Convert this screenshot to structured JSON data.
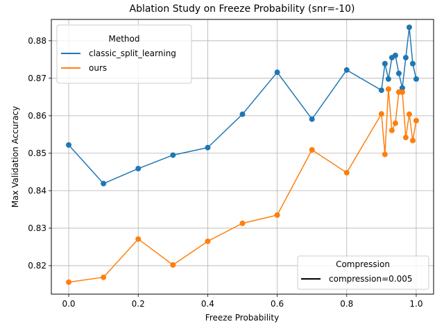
{
  "chart_data": {
    "type": "line",
    "title": "Ablation Study on Freeze Probability (snr=-10)",
    "xlabel": "Freeze Probability",
    "ylabel": "Max Validation Accuracy",
    "xlim": [
      -0.05,
      1.05
    ],
    "ylim": [
      0.8124,
      0.8857
    ],
    "x_ticks": [
      0.0,
      0.2,
      0.4,
      0.6,
      0.8,
      1.0
    ],
    "x_tick_labels": [
      "0.0",
      "0.2",
      "0.4",
      "0.6",
      "0.8",
      "1.0"
    ],
    "y_ticks": [
      0.82,
      0.83,
      0.84,
      0.85,
      0.86,
      0.87,
      0.88
    ],
    "y_tick_labels": [
      "0.82",
      "0.83",
      "0.84",
      "0.85",
      "0.86",
      "0.87",
      "0.88"
    ],
    "grid": true,
    "x": [
      0.0,
      0.1,
      0.2,
      0.3,
      0.4,
      0.5,
      0.6,
      0.7,
      0.8,
      0.9,
      0.91,
      0.92,
      0.93,
      0.94,
      0.95,
      0.96,
      0.97,
      0.98,
      0.99,
      1.0
    ],
    "series": [
      {
        "name": "classic_split_learning",
        "color": "#1f77b4",
        "values": [
          0.8522,
          0.8419,
          0.8459,
          0.8495,
          0.8515,
          0.8604,
          0.8716,
          0.8591,
          0.8722,
          0.8668,
          0.8739,
          0.8698,
          0.8755,
          0.8761,
          0.8713,
          0.8674,
          0.8755,
          0.8836,
          0.8739,
          0.8698
        ]
      },
      {
        "name": "ours",
        "color": "#ff7f0e",
        "values": [
          0.8156,
          0.8169,
          0.8271,
          0.8202,
          0.8265,
          0.8313,
          0.8335,
          0.8509,
          0.8448,
          0.8605,
          0.8497,
          0.8671,
          0.8561,
          0.858,
          0.8663,
          0.8663,
          0.8542,
          0.8604,
          0.8534,
          0.8587
        ]
      }
    ],
    "legend_method": {
      "title": "Method",
      "placement": "upper-left",
      "entries": [
        "classic_split_learning",
        "ours"
      ]
    },
    "legend_compression": {
      "title": "Compression",
      "placement": "lower-right",
      "entries": [
        "compression=0.005"
      ],
      "color": "#000000"
    }
  }
}
